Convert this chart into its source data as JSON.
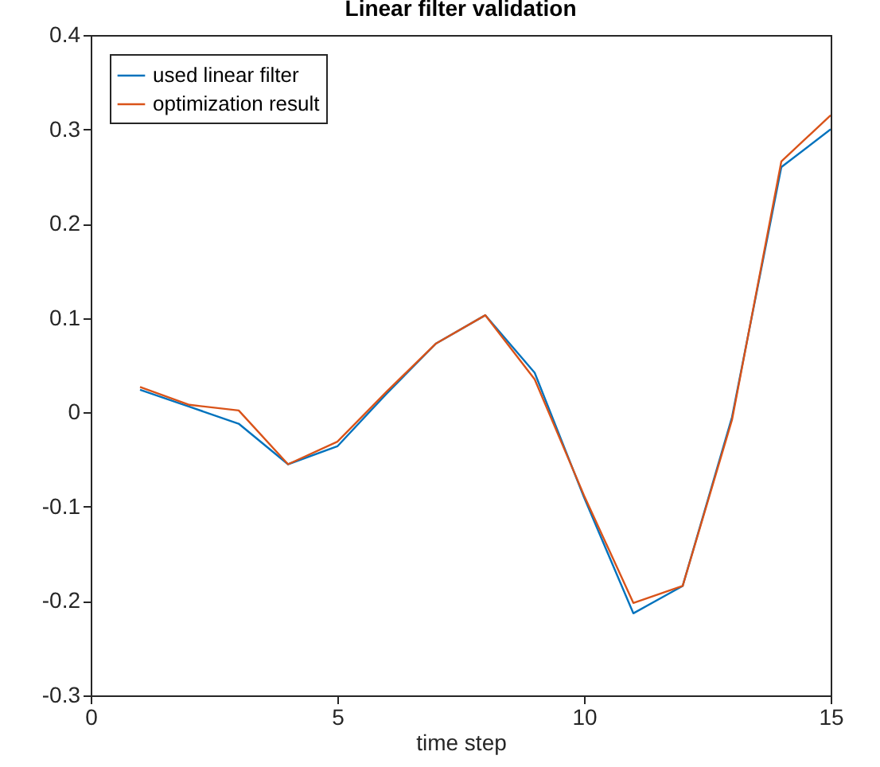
{
  "chart_data": {
    "type": "line",
    "title": "Linear filter validation",
    "xlabel": "time step",
    "x": [
      1,
      2,
      3,
      4,
      5,
      6,
      7,
      8,
      9,
      10,
      11,
      12,
      13,
      14,
      15
    ],
    "series": [
      {
        "name": "used linear filter",
        "color": "#0072bd",
        "values": [
          0.024,
          0.006,
          -0.012,
          -0.055,
          -0.036,
          0.02,
          0.073,
          0.103,
          0.042,
          -0.09,
          -0.213,
          -0.184,
          -0.005,
          0.26,
          0.3
        ]
      },
      {
        "name": "optimization result",
        "color": "#d95319",
        "values": [
          0.027,
          0.008,
          0.002,
          -0.055,
          -0.031,
          0.022,
          0.073,
          0.103,
          0.035,
          -0.088,
          -0.202,
          -0.184,
          -0.008,
          0.266,
          0.315
        ]
      }
    ],
    "xlim": [
      0,
      15
    ],
    "xticks": [
      0,
      5,
      10,
      15
    ],
    "ylim": [
      -0.3,
      0.4
    ],
    "yticks": [
      -0.3,
      -0.2,
      -0.1,
      0,
      0.1,
      0.2,
      0.3,
      0.4
    ],
    "grid": false,
    "legend": "top left",
    "marker": "none",
    "line_style": "solid"
  }
}
